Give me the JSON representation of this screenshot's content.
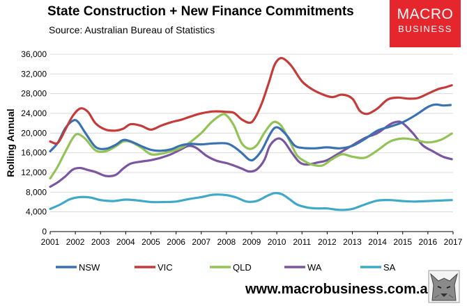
{
  "header": {
    "title": "State Construction + New Finance Commitments",
    "subtitle": "Source: Australian Bureau of Statistics"
  },
  "logo": {
    "line1": "MACRO",
    "line2": "BUSINESS"
  },
  "footer": {
    "website": "www.macrobusiness.com.au"
  },
  "colors": {
    "NSW": "#3a71b2",
    "VIC": "#c43c3a",
    "QLD": "#93c356",
    "WA": "#7a56a0",
    "SA": "#3fa9c7",
    "brand": "#e5272d"
  },
  "chart_data": {
    "type": "line",
    "title": "State Construction + New Finance Commitments",
    "xlabel": "",
    "ylabel": "Rolling Annual",
    "xlim": [
      2001,
      2017
    ],
    "ylim": [
      0,
      36000
    ],
    "x_ticks": [
      2001,
      2002,
      2003,
      2004,
      2005,
      2006,
      2007,
      2008,
      2009,
      2010,
      2011,
      2012,
      2013,
      2014,
      2015,
      2016,
      2017
    ],
    "y_ticks": [
      0,
      4000,
      8000,
      12000,
      16000,
      20000,
      24000,
      28000,
      32000,
      36000
    ],
    "y_tick_labels": [
      "0",
      "4,000",
      "8,000",
      "12,000",
      "16,000",
      "20,000",
      "24,000",
      "28,000",
      "32,000",
      "36,000"
    ],
    "legend_position": "bottom",
    "series": [
      {
        "name": "NSW",
        "x": [
          2001,
          2001.3,
          2001.6,
          2001.9,
          2002.1,
          2002.4,
          2002.8,
          2003.2,
          2003.6,
          2003.9,
          2004.2,
          2004.6,
          2005.0,
          2005.4,
          2005.8,
          2006.2,
          2006.6,
          2007.0,
          2007.5,
          2008.0,
          2008.3,
          2008.6,
          2008.9,
          2009.1,
          2009.4,
          2009.7,
          2009.9,
          2010.1,
          2010.4,
          2010.7,
          2011.0,
          2011.5,
          2012.0,
          2012.5,
          2013.0,
          2013.5,
          2014.0,
          2014.5,
          2015.0,
          2015.5,
          2016.0,
          2016.3,
          2016.6,
          2016.9
        ],
        "values": [
          16300,
          18000,
          21000,
          22500,
          22300,
          20000,
          17200,
          16800,
          17600,
          18600,
          18300,
          17400,
          16600,
          16400,
          16700,
          17500,
          17800,
          17700,
          17900,
          17900,
          17200,
          16000,
          14600,
          14700,
          16500,
          19500,
          21000,
          21000,
          19500,
          17500,
          17000,
          16900,
          17100,
          16900,
          17400,
          18800,
          20500,
          21300,
          22200,
          23600,
          25300,
          25800,
          25600,
          25700
        ]
      },
      {
        "name": "VIC",
        "x": [
          2001,
          2001.3,
          2001.6,
          2001.9,
          2002.2,
          2002.5,
          2002.8,
          2003.2,
          2003.6,
          2003.9,
          2004.2,
          2004.6,
          2005.0,
          2005.4,
          2005.8,
          2006.2,
          2006.6,
          2007.0,
          2007.5,
          2008.0,
          2008.3,
          2008.6,
          2008.9,
          2009.1,
          2009.4,
          2009.7,
          2009.9,
          2010.1,
          2010.3,
          2010.6,
          2011.0,
          2011.4,
          2011.8,
          2012.2,
          2012.6,
          2013.0,
          2013.3,
          2013.6,
          2014.0,
          2014.4,
          2014.8,
          2015.2,
          2015.6,
          2016.0,
          2016.4,
          2016.7,
          2016.95
        ],
        "values": [
          18300,
          18000,
          20700,
          23500,
          25000,
          24300,
          22000,
          20700,
          20500,
          20900,
          21800,
          21500,
          20700,
          21500,
          22200,
          22700,
          23400,
          24000,
          24400,
          24300,
          24100,
          22800,
          22100,
          22800,
          26000,
          30500,
          33700,
          35100,
          35000,
          33500,
          30500,
          28900,
          27900,
          27300,
          27800,
          27000,
          24500,
          23900,
          25000,
          26800,
          27200,
          27000,
          27100,
          28000,
          28900,
          29300,
          29700
        ]
      },
      {
        "name": "QLD",
        "x": [
          2001,
          2001.3,
          2001.6,
          2001.9,
          2002.1,
          2002.4,
          2002.8,
          2003.2,
          2003.6,
          2003.9,
          2004.2,
          2004.6,
          2005.0,
          2005.4,
          2005.8,
          2006.2,
          2006.6,
          2007.0,
          2007.4,
          2007.8,
          2008.0,
          2008.3,
          2008.6,
          2008.9,
          2009.2,
          2009.5,
          2009.8,
          2010.0,
          2010.2,
          2010.5,
          2010.8,
          2011.1,
          2011.4,
          2011.8,
          2012.2,
          2012.6,
          2013.0,
          2013.5,
          2014.0,
          2014.5,
          2015.0,
          2015.5,
          2016.0,
          2016.5,
          2016.95
        ],
        "values": [
          10800,
          13200,
          16200,
          19000,
          19800,
          18800,
          16500,
          16300,
          17300,
          18300,
          18200,
          17100,
          15700,
          15800,
          16300,
          17000,
          18300,
          20000,
          22200,
          23700,
          23600,
          21500,
          18000,
          16800,
          17500,
          20000,
          22000,
          22200,
          21300,
          18500,
          15500,
          14300,
          13600,
          13400,
          14700,
          15700,
          15200,
          15000,
          16500,
          18300,
          18900,
          18600,
          18100,
          18600,
          19900
        ]
      },
      {
        "name": "WA",
        "x": [
          2001,
          2001.3,
          2001.6,
          2001.9,
          2002.2,
          2002.5,
          2002.8,
          2003.2,
          2003.6,
          2003.9,
          2004.2,
          2004.6,
          2005.0,
          2005.4,
          2005.8,
          2006.2,
          2006.5,
          2006.8,
          2007.2,
          2007.6,
          2008.0,
          2008.3,
          2008.6,
          2008.9,
          2009.2,
          2009.5,
          2009.7,
          2009.9,
          2010.1,
          2010.3,
          2010.6,
          2010.9,
          2011.2,
          2011.6,
          2012.0,
          2012.5,
          2013.0,
          2013.5,
          2014.0,
          2014.5,
          2014.8,
          2015.0,
          2015.4,
          2015.8,
          2016.2,
          2016.6,
          2016.95
        ],
        "values": [
          9100,
          10000,
          11200,
          12600,
          12900,
          12500,
          12100,
          11300,
          11500,
          12800,
          13800,
          14200,
          14500,
          15000,
          15700,
          16700,
          17400,
          17000,
          15400,
          14400,
          13900,
          13400,
          12800,
          12200,
          12600,
          14500,
          17200,
          18500,
          18900,
          18200,
          16000,
          14100,
          13600,
          14000,
          14500,
          16000,
          17500,
          19000,
          20000,
          21800,
          22300,
          22000,
          20000,
          17500,
          16300,
          15200,
          14700
        ]
      },
      {
        "name": "SA",
        "x": [
          2001,
          2001.4,
          2001.8,
          2002.2,
          2002.6,
          2003.0,
          2003.5,
          2004.0,
          2004.5,
          2005.0,
          2005.5,
          2006.0,
          2006.5,
          2007.0,
          2007.5,
          2008.0,
          2008.4,
          2008.8,
          2009.2,
          2009.6,
          2009.9,
          2010.2,
          2010.5,
          2010.8,
          2011.2,
          2011.6,
          2012.0,
          2012.5,
          2013.0,
          2013.5,
          2014.0,
          2014.5,
          2015.0,
          2015.5,
          2016.0,
          2016.5,
          2016.95
        ],
        "values": [
          4600,
          5500,
          6600,
          7000,
          6900,
          6400,
          6200,
          6500,
          6300,
          6000,
          6000,
          6100,
          6600,
          7000,
          7500,
          7400,
          6900,
          6100,
          6200,
          7200,
          7800,
          7600,
          6600,
          5500,
          4900,
          4700,
          4700,
          4400,
          4600,
          5500,
          6300,
          6400,
          6200,
          6100,
          6200,
          6300,
          6400
        ]
      }
    ]
  }
}
